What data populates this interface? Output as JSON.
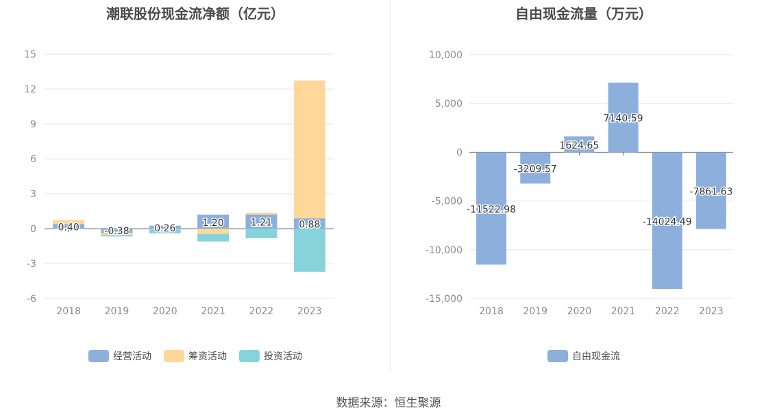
{
  "source_text": "数据来源：恒生聚源",
  "colors": {
    "operating": "#8dafdc",
    "financing": "#fed898",
    "investing": "#86d3da",
    "free_cash_flow": "#8dafdc",
    "grid": "#e6e6e6",
    "axis": "#6e7079"
  },
  "chart_data": [
    {
      "type": "bar",
      "stacked": true,
      "title": "潮联股份现金流净额（亿元）",
      "categories": [
        "2018",
        "2019",
        "2020",
        "2021",
        "2022",
        "2023"
      ],
      "ylim": [
        -6,
        15
      ],
      "yticks": [
        15,
        12,
        9,
        6,
        3,
        0,
        -3,
        -6
      ],
      "grid": true,
      "legend_position": "bottom",
      "series": [
        {
          "name": "经营活动",
          "color_key": "operating",
          "values": [
            0.4,
            -0.38,
            0.26,
            1.2,
            1.21,
            0.88
          ]
        },
        {
          "name": "筹资活动",
          "color_key": "financing",
          "values": [
            0.35,
            -0.17,
            -0.05,
            -0.45,
            0.16,
            11.85
          ]
        },
        {
          "name": "投资活动",
          "color_key": "investing",
          "values": [
            -0.02,
            -0.12,
            -0.35,
            -0.65,
            -0.82,
            -3.7
          ]
        }
      ],
      "data_labels": [
        "0.40",
        "-0.38",
        "0.26",
        "1.20",
        "1.21",
        "0.88"
      ]
    },
    {
      "type": "bar",
      "title": "自由现金流量（万元）",
      "categories": [
        "2018",
        "2019",
        "2020",
        "2021",
        "2022",
        "2023"
      ],
      "ylim": [
        -15000,
        10000
      ],
      "yticks": [
        10000,
        5000,
        0,
        -5000,
        -10000,
        -15000
      ],
      "ytick_labels": [
        "10,000",
        "5,000",
        "0",
        "-5,000",
        "-10,000",
        "-15,000"
      ],
      "grid": true,
      "legend_position": "bottom",
      "series": [
        {
          "name": "自由现金流",
          "color_key": "free_cash_flow",
          "values": [
            -11522.98,
            -3209.57,
            1624.65,
            7140.59,
            -14024.49,
            -7861.63
          ]
        }
      ],
      "data_labels": [
        "-11522.98",
        "-3209.57",
        "1624.65",
        "7140.59",
        "-14024.49",
        "-7861.63"
      ]
    }
  ]
}
